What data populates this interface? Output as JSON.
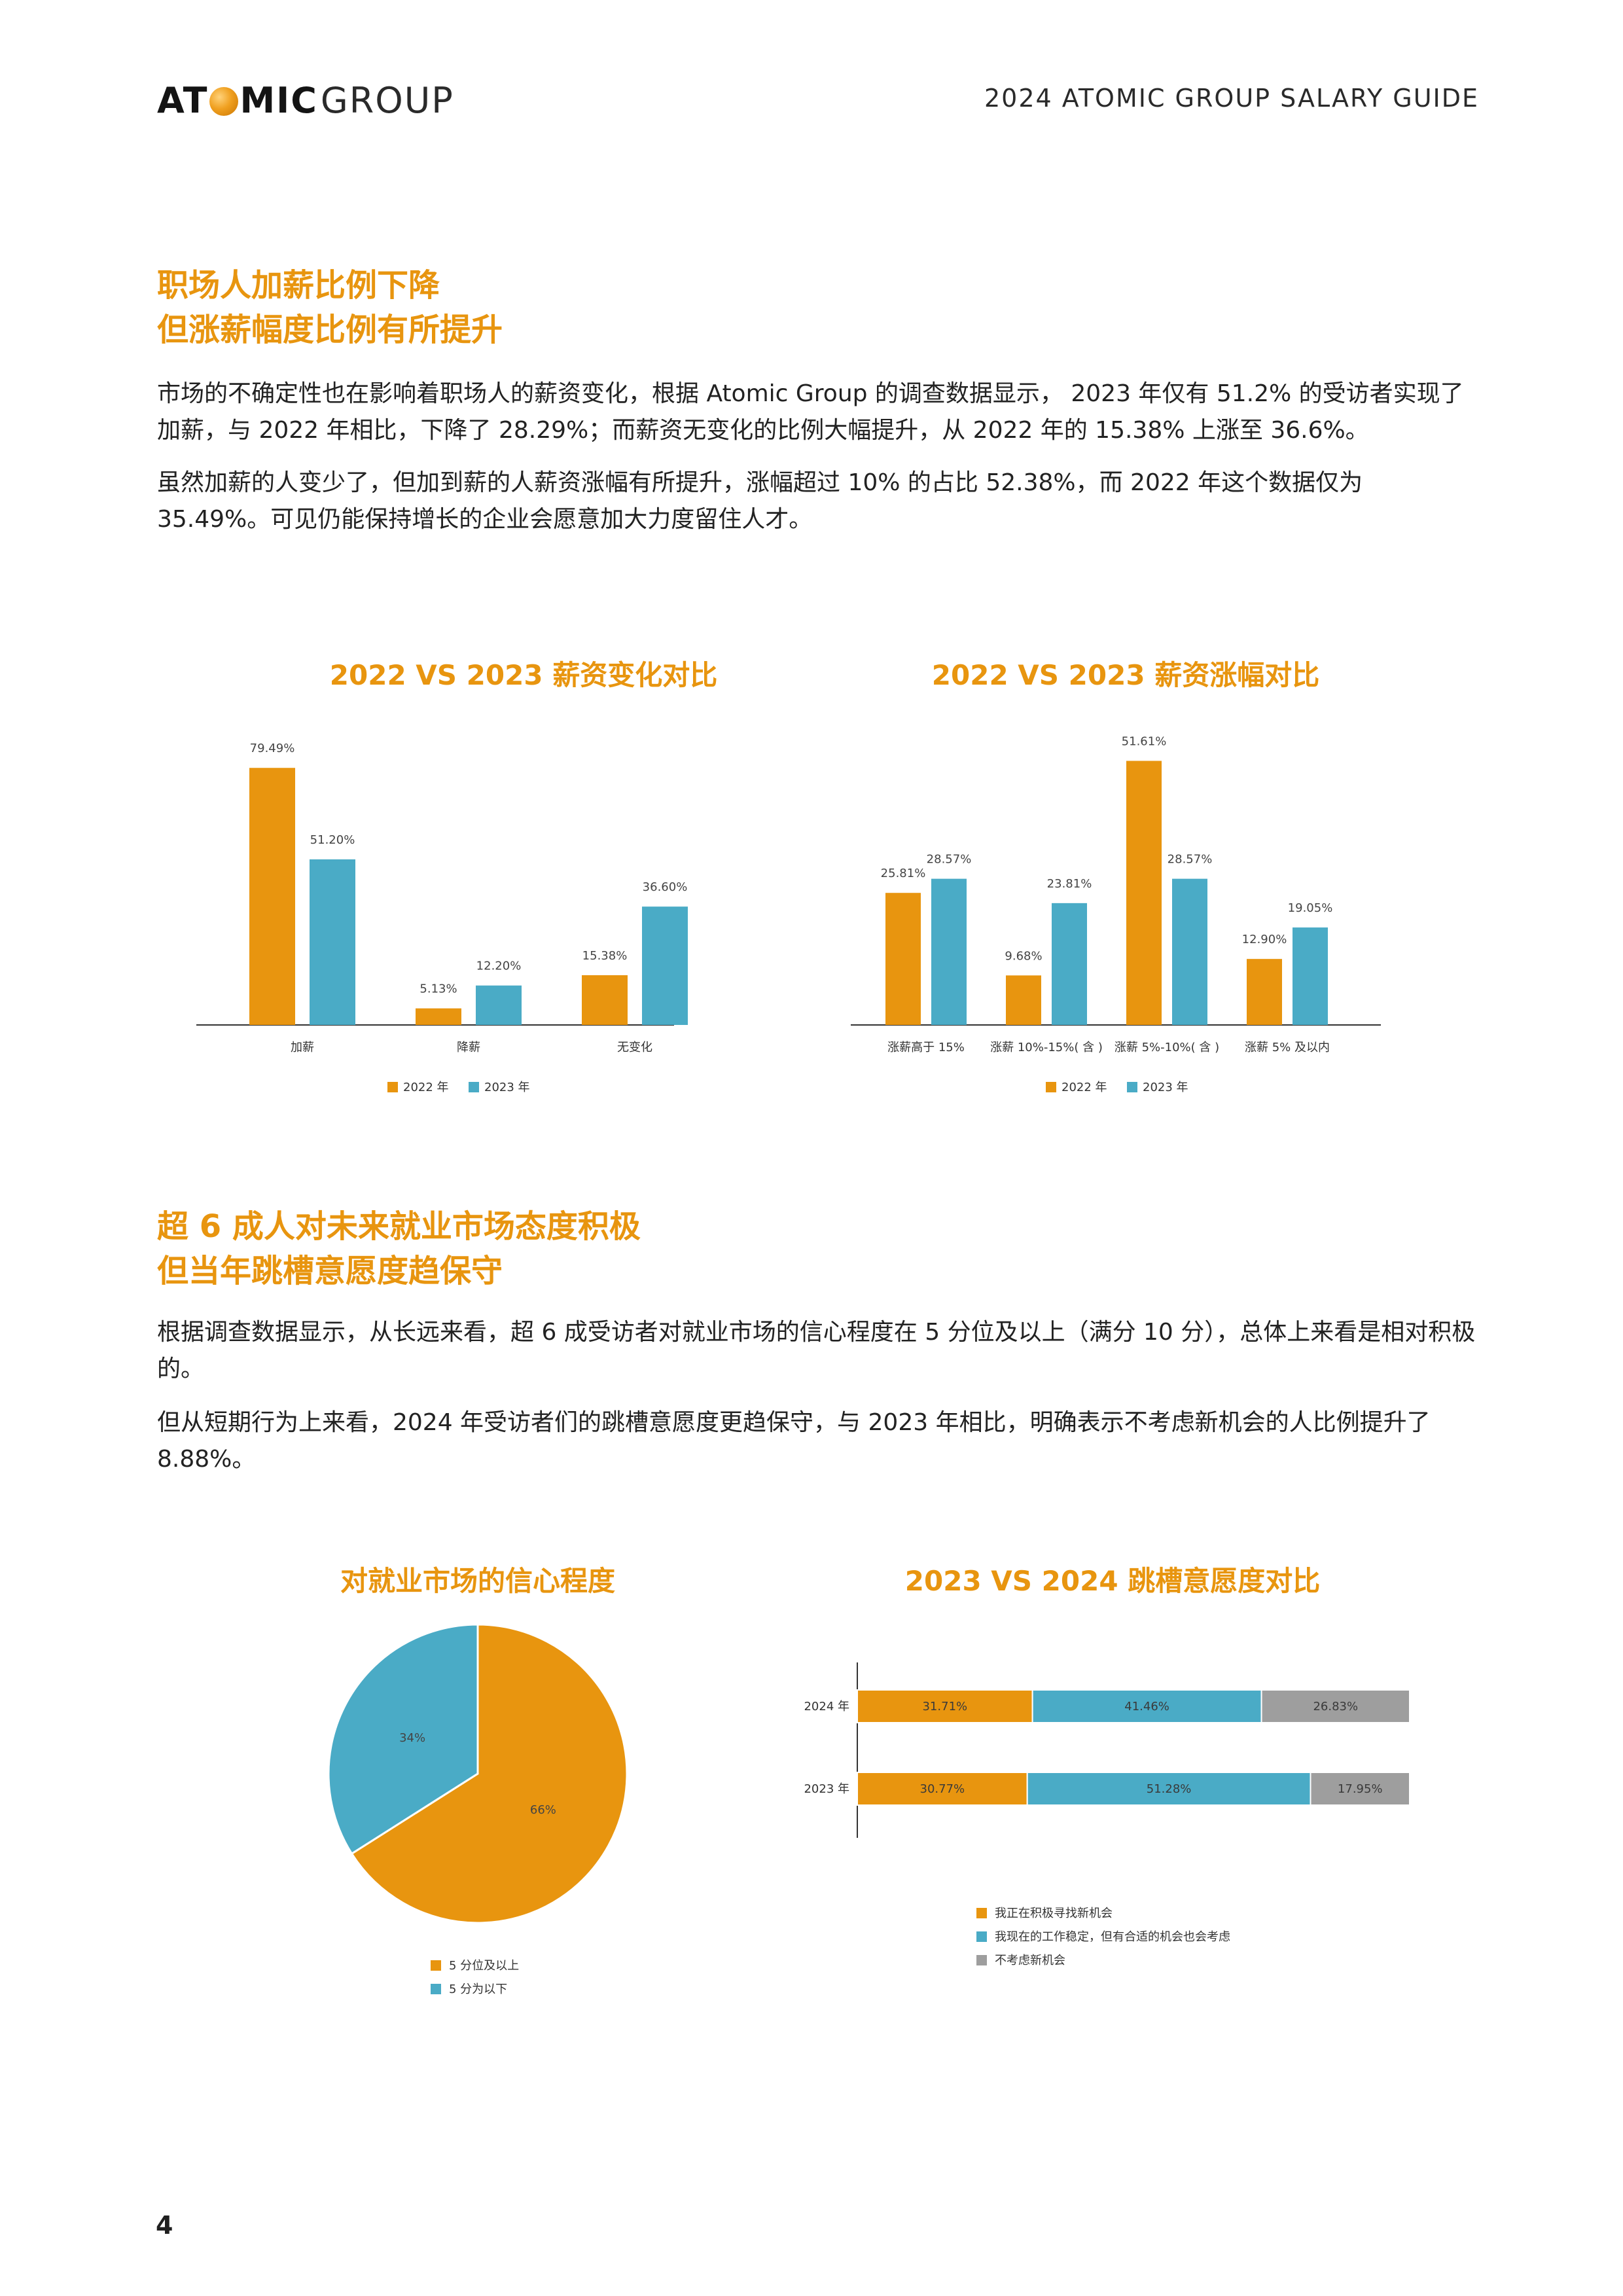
{
  "header": {
    "logo_bold_left": "AT",
    "logo_bold_right": "MIC",
    "logo_light": "GROUP",
    "right_text": "2024 ATOMIC GROUP SALARY GUIDE"
  },
  "section1": {
    "title_line1": "职场人加薪比例下降",
    "title_line2": "但涨薪幅度比例有所提升",
    "para1": "市场的不确定性也在影响着职场人的薪资变化，根据 Atomic Group 的调查数据显示， 2023 年仅有 51.2% 的受访者实现了加薪，与 2022 年相比，下降了 28.29%；而薪资无变化的比例大幅提升，从 2022 年的 15.38% 上涨至 36.6%。",
    "para2": "虽然加薪的人变少了，但加到薪的人薪资涨幅有所提升，涨幅超过 10% 的占比 52.38%，而 2022 年这个数据仅为 35.49%。可见仍能保持增长的企业会愿意加大力度留住人才。"
  },
  "section2": {
    "title_line1": "超 6 成人对未来就业市场态度积极",
    "title_line2": "但当年跳槽意愿度趋保守",
    "para1": "根据调查数据显示，从长远来看，超 6 成受访者对就业市场的信心程度在 5 分位及以上（满分 10 分），总体上来看是相对积极的。",
    "para2": "但从短期行为上来看，2024 年受访者们的跳槽意愿度更趋保守，与 2023 年相比，明确表示不考虑新机会的人比例提升了 8.88%。"
  },
  "colors": {
    "orange": "#e8950f",
    "teal": "#4aabc6",
    "gray": "#9e9e9e",
    "axis": "#333333"
  },
  "chart_data": [
    {
      "type": "bar",
      "title": "2022 VS 2023 薪资变化对比",
      "categories": [
        "加薪",
        "降薪",
        "无变化"
      ],
      "series": [
        {
          "name": "2022 年",
          "values": [
            79.49,
            5.13,
            15.38
          ],
          "labels": [
            "79.49%",
            "5.13%",
            "15.38%"
          ]
        },
        {
          "name": "2023 年",
          "values": [
            51.2,
            12.2,
            36.6
          ],
          "labels": [
            "51.20%",
            "12.20%",
            "36.60%"
          ]
        }
      ],
      "ylim": [
        0,
        85
      ],
      "legend": "bottom"
    },
    {
      "type": "bar",
      "title": "2022 VS 2023 薪资涨幅对比",
      "categories": [
        "涨薪高于 15%",
        "涨薪 10%-15%( 含 )",
        "涨薪 5%-10%( 含 )",
        "涨薪 5% 及以内"
      ],
      "series": [
        {
          "name": "2022 年",
          "values": [
            25.81,
            9.68,
            51.61,
            12.9
          ],
          "labels": [
            "25.81%",
            "9.68%",
            "51.61%",
            "12.90%"
          ]
        },
        {
          "name": "2023 年",
          "values": [
            28.57,
            23.81,
            28.57,
            19.05
          ],
          "labels": [
            "28.57%",
            "23.81%",
            "28.57%",
            "19.05%"
          ]
        }
      ],
      "ylim": [
        0,
        55
      ],
      "legend": "bottom"
    },
    {
      "type": "pie",
      "title": "对就业市场的信心程度",
      "slices": [
        {
          "name": "5 分位及以上",
          "value": 66,
          "label": "66%"
        },
        {
          "name": "5 分为以下",
          "value": 34,
          "label": "34%"
        }
      ],
      "legend": "bottom"
    },
    {
      "type": "bar",
      "orientation": "horizontal-stacked",
      "title": "2023 VS 2024 跳槽意愿度对比",
      "categories": [
        "2024 年",
        "2023 年"
      ],
      "series": [
        {
          "name": "我正在积极寻找新机会",
          "values": [
            31.71,
            30.77
          ],
          "labels": [
            "31.71%",
            "30.77%"
          ]
        },
        {
          "name": "我现在的工作稳定，但有合适的机会也会考虑",
          "values": [
            41.46,
            51.28
          ],
          "labels": [
            "41.46%",
            "51.28%"
          ]
        },
        {
          "name": "不考虑新机会",
          "values": [
            26.83,
            17.95
          ],
          "labels": [
            "26.83%",
            "17.95%"
          ]
        }
      ],
      "xlim": [
        0,
        100
      ],
      "legend": "bottom"
    }
  ],
  "footer": {
    "page_number": "4"
  }
}
